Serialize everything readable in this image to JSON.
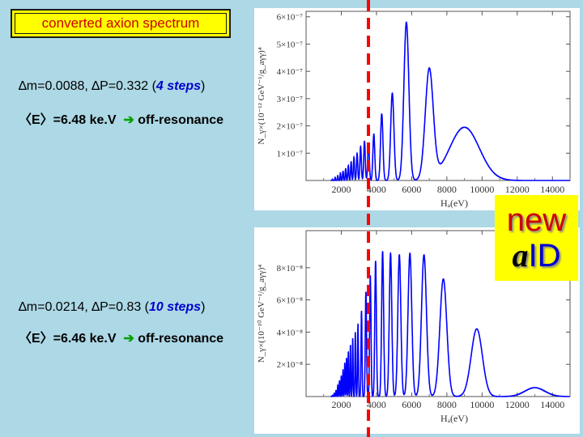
{
  "title": "converted axion spectrum",
  "panels": [
    {
      "dm_label": "∆m=0.0088, ∆P=0.332 (",
      "steps_value": "4 steps",
      "close_paren": ")",
      "energy_label": "〈E〉=6.48 ke.V",
      "arrow": "➔",
      "resonance_label": "off-resonance"
    },
    {
      "dm_label": "∆m=0.0214, ∆P=0.83 (",
      "steps_value": "10 steps",
      "close_paren": ")",
      "energy_label": "〈E〉=6.46 ke.V",
      "arrow": "➔",
      "resonance_label": "off-resonance"
    }
  ],
  "badge": {
    "line1": "new",
    "a": "a",
    "id": "ID"
  },
  "colors": {
    "curve": "#0000ff",
    "marker": "#ff0000",
    "title_bg": "#ffff00",
    "title_text": "#cc0000"
  },
  "chart_data": [
    {
      "type": "line",
      "xlabel": "Hₐ(eV)",
      "ylabel": "N_γ×(10⁻¹² GeV⁻¹/g_aγγ)⁴",
      "xlim": [
        0,
        15000
      ],
      "ylim": [
        0,
        6.2e-07
      ],
      "x_ticks": [
        2000,
        4000,
        6000,
        8000,
        10000,
        12000,
        14000
      ],
      "y_ticks": [
        1e-07,
        2e-07,
        3e-07,
        4e-07,
        5e-07,
        6e-07
      ],
      "y_tick_labels": [
        "1×10⁻⁷",
        "2×10⁻⁷",
        "3×10⁻⁷",
        "4×10⁻⁷",
        "5×10⁻⁷",
        "6×10⁻⁷"
      ],
      "marker_x": 3300,
      "peaks": [
        {
          "x": 1500,
          "y": 5e-09,
          "w": 25
        },
        {
          "x": 1650,
          "y": 1.2e-08,
          "w": 25
        },
        {
          "x": 1800,
          "y": 1.8e-08,
          "w": 30
        },
        {
          "x": 1950,
          "y": 2.8e-08,
          "w": 30
        },
        {
          "x": 2100,
          "y": 3.5e-08,
          "w": 35
        },
        {
          "x": 2250,
          "y": 4.5e-08,
          "w": 35
        },
        {
          "x": 2400,
          "y": 5.5e-08,
          "w": 40
        },
        {
          "x": 2560,
          "y": 7e-08,
          "w": 40
        },
        {
          "x": 2720,
          "y": 8.5e-08,
          "w": 45
        },
        {
          "x": 2900,
          "y": 1e-07,
          "w": 50
        },
        {
          "x": 3100,
          "y": 1.25e-07,
          "w": 55
        },
        {
          "x": 3320,
          "y": 1.45e-07,
          "w": 60
        },
        {
          "x": 3550,
          "y": 1.35e-07,
          "w": 65
        },
        {
          "x": 3850,
          "y": 1.7e-07,
          "w": 75
        },
        {
          "x": 4300,
          "y": 2.45e-07,
          "w": 95
        },
        {
          "x": 4900,
          "y": 3.2e-07,
          "w": 130
        },
        {
          "x": 5700,
          "y": 5.8e-07,
          "w": 200
        },
        {
          "x": 7000,
          "y": 4e-07,
          "w": 320
        },
        {
          "x": 9000,
          "y": 1.95e-07,
          "w": 1200
        }
      ]
    },
    {
      "type": "line",
      "xlabel": "Hₐ(eV)",
      "ylabel": "N_γ×(10⁻¹⁰ GeV⁻¹/g_aγγ)⁴",
      "xlim": [
        0,
        15000
      ],
      "ylim": [
        0,
        1.03e-07
      ],
      "x_ticks": [
        2000,
        4000,
        6000,
        8000,
        10000,
        12000,
        14000
      ],
      "y_ticks": [
        2e-08,
        4e-08,
        6e-08,
        8e-08
      ],
      "y_tick_labels": [
        "2×10⁻⁸",
        "4×10⁻⁸",
        "6×10⁻⁸",
        "8×10⁻⁸"
      ],
      "marker_x": 3300,
      "peaks": [
        {
          "x": 1500,
          "y": 8e-10,
          "w": 25
        },
        {
          "x": 1600,
          "y": 2e-09,
          "w": 25
        },
        {
          "x": 1700,
          "y": 4e-09,
          "w": 25
        },
        {
          "x": 1800,
          "y": 7e-09,
          "w": 25
        },
        {
          "x": 1900,
          "y": 1e-08,
          "w": 25
        },
        {
          "x": 2000,
          "y": 1.3e-08,
          "w": 25
        },
        {
          "x": 2100,
          "y": 1.7e-08,
          "w": 25
        },
        {
          "x": 2200,
          "y": 2.1e-08,
          "w": 25
        },
        {
          "x": 2300,
          "y": 2.4e-08,
          "w": 25
        },
        {
          "x": 2400,
          "y": 2.8e-08,
          "w": 25
        },
        {
          "x": 2520,
          "y": 3.2e-08,
          "w": 28
        },
        {
          "x": 2650,
          "y": 3.6e-08,
          "w": 30
        },
        {
          "x": 2800,
          "y": 4e-08,
          "w": 32
        },
        {
          "x": 2950,
          "y": 4.5e-08,
          "w": 35
        },
        {
          "x": 3150,
          "y": 5.3e-08,
          "w": 40
        },
        {
          "x": 3400,
          "y": 6.5e-08,
          "w": 50
        },
        {
          "x": 3650,
          "y": 7.5e-08,
          "w": 55
        },
        {
          "x": 3950,
          "y": 8.4e-08,
          "w": 65
        },
        {
          "x": 4350,
          "y": 9e-08,
          "w": 80
        },
        {
          "x": 4800,
          "y": 8.9e-08,
          "w": 100
        },
        {
          "x": 5300,
          "y": 8.8e-08,
          "w": 120
        },
        {
          "x": 5900,
          "y": 8.9e-08,
          "w": 150
        },
        {
          "x": 6700,
          "y": 8.8e-08,
          "w": 200
        },
        {
          "x": 7800,
          "y": 7.3e-08,
          "w": 280
        },
        {
          "x": 9700,
          "y": 4.2e-08,
          "w": 450
        },
        {
          "x": 13000,
          "y": 5.5e-09,
          "w": 800
        }
      ]
    }
  ]
}
